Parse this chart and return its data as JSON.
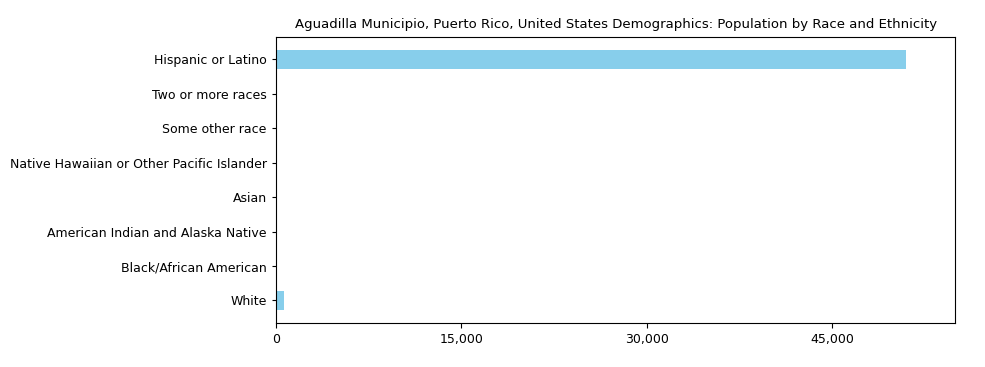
{
  "title": "Aguadilla Municipio, Puerto Rico, United States Demographics: Population by Race and Ethnicity",
  "categories": [
    "Hispanic or Latino",
    "Two or more races",
    "Some other race",
    "Native Hawaiian or Other Pacific Islander",
    "Asian",
    "American Indian and Alaska Native",
    "Black/African American",
    "White"
  ],
  "values": [
    51000,
    50,
    30,
    10,
    20,
    30,
    20,
    700
  ],
  "bar_color": "#87CEEB",
  "xlim": [
    0,
    55000
  ],
  "xticks": [
    0,
    15000,
    30000,
    45000
  ],
  "background_color": "#ffffff",
  "title_fontsize": 9.5,
  "tick_fontsize": 9,
  "label_fontsize": 9
}
